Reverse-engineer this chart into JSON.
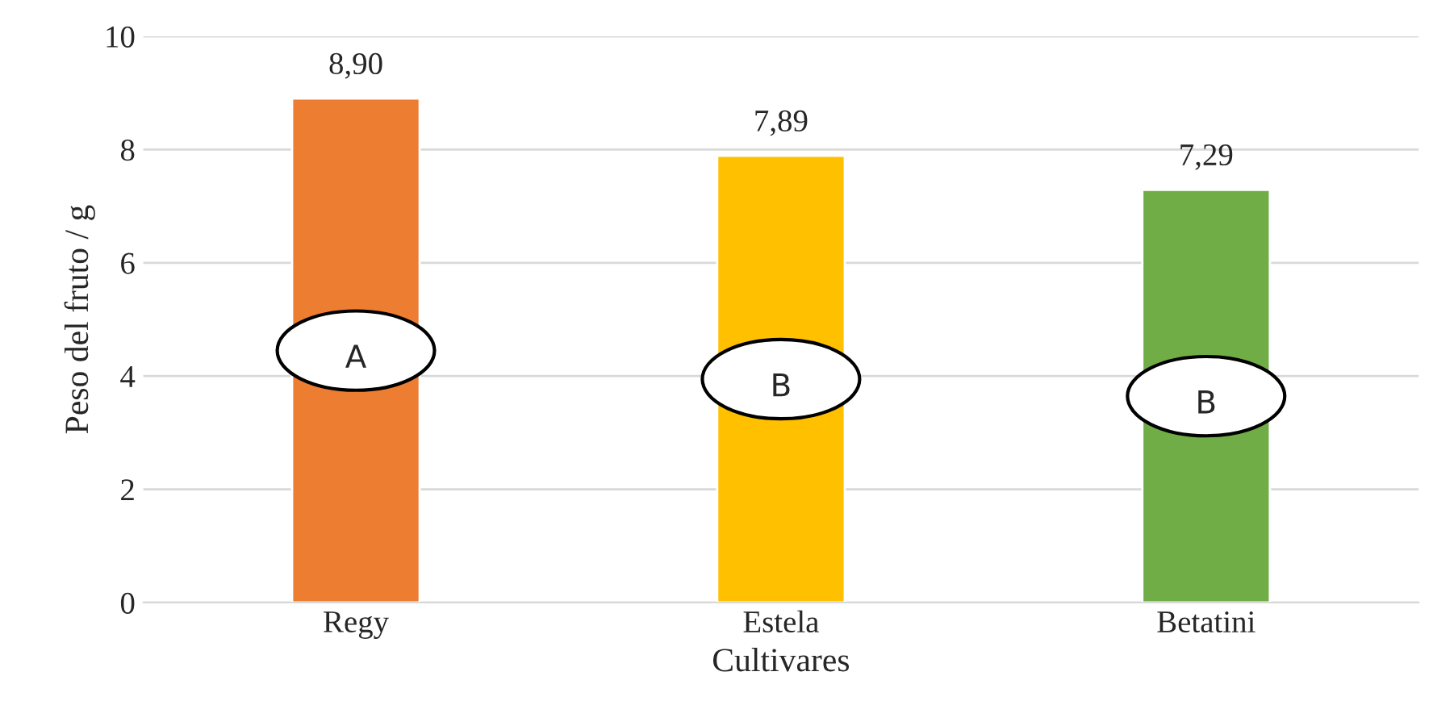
{
  "chart_data": {
    "type": "bar",
    "xlabel": "Cultivares",
    "ylabel": "Peso del fruto / g",
    "categories": [
      "Regy",
      "Estela",
      "Betatini"
    ],
    "values": [
      8.9,
      7.89,
      7.29
    ],
    "colors": [
      "#ed7d31",
      "#ffc000",
      "#70ad47"
    ],
    "value_labels": [
      "8,90",
      "7,89",
      "7,29"
    ],
    "ylim": [
      0,
      10
    ],
    "yticks": [
      0,
      2,
      4,
      6,
      8,
      10
    ],
    "grid": "y",
    "legend": false,
    "annotations": [
      "A",
      "B",
      "B"
    ]
  }
}
